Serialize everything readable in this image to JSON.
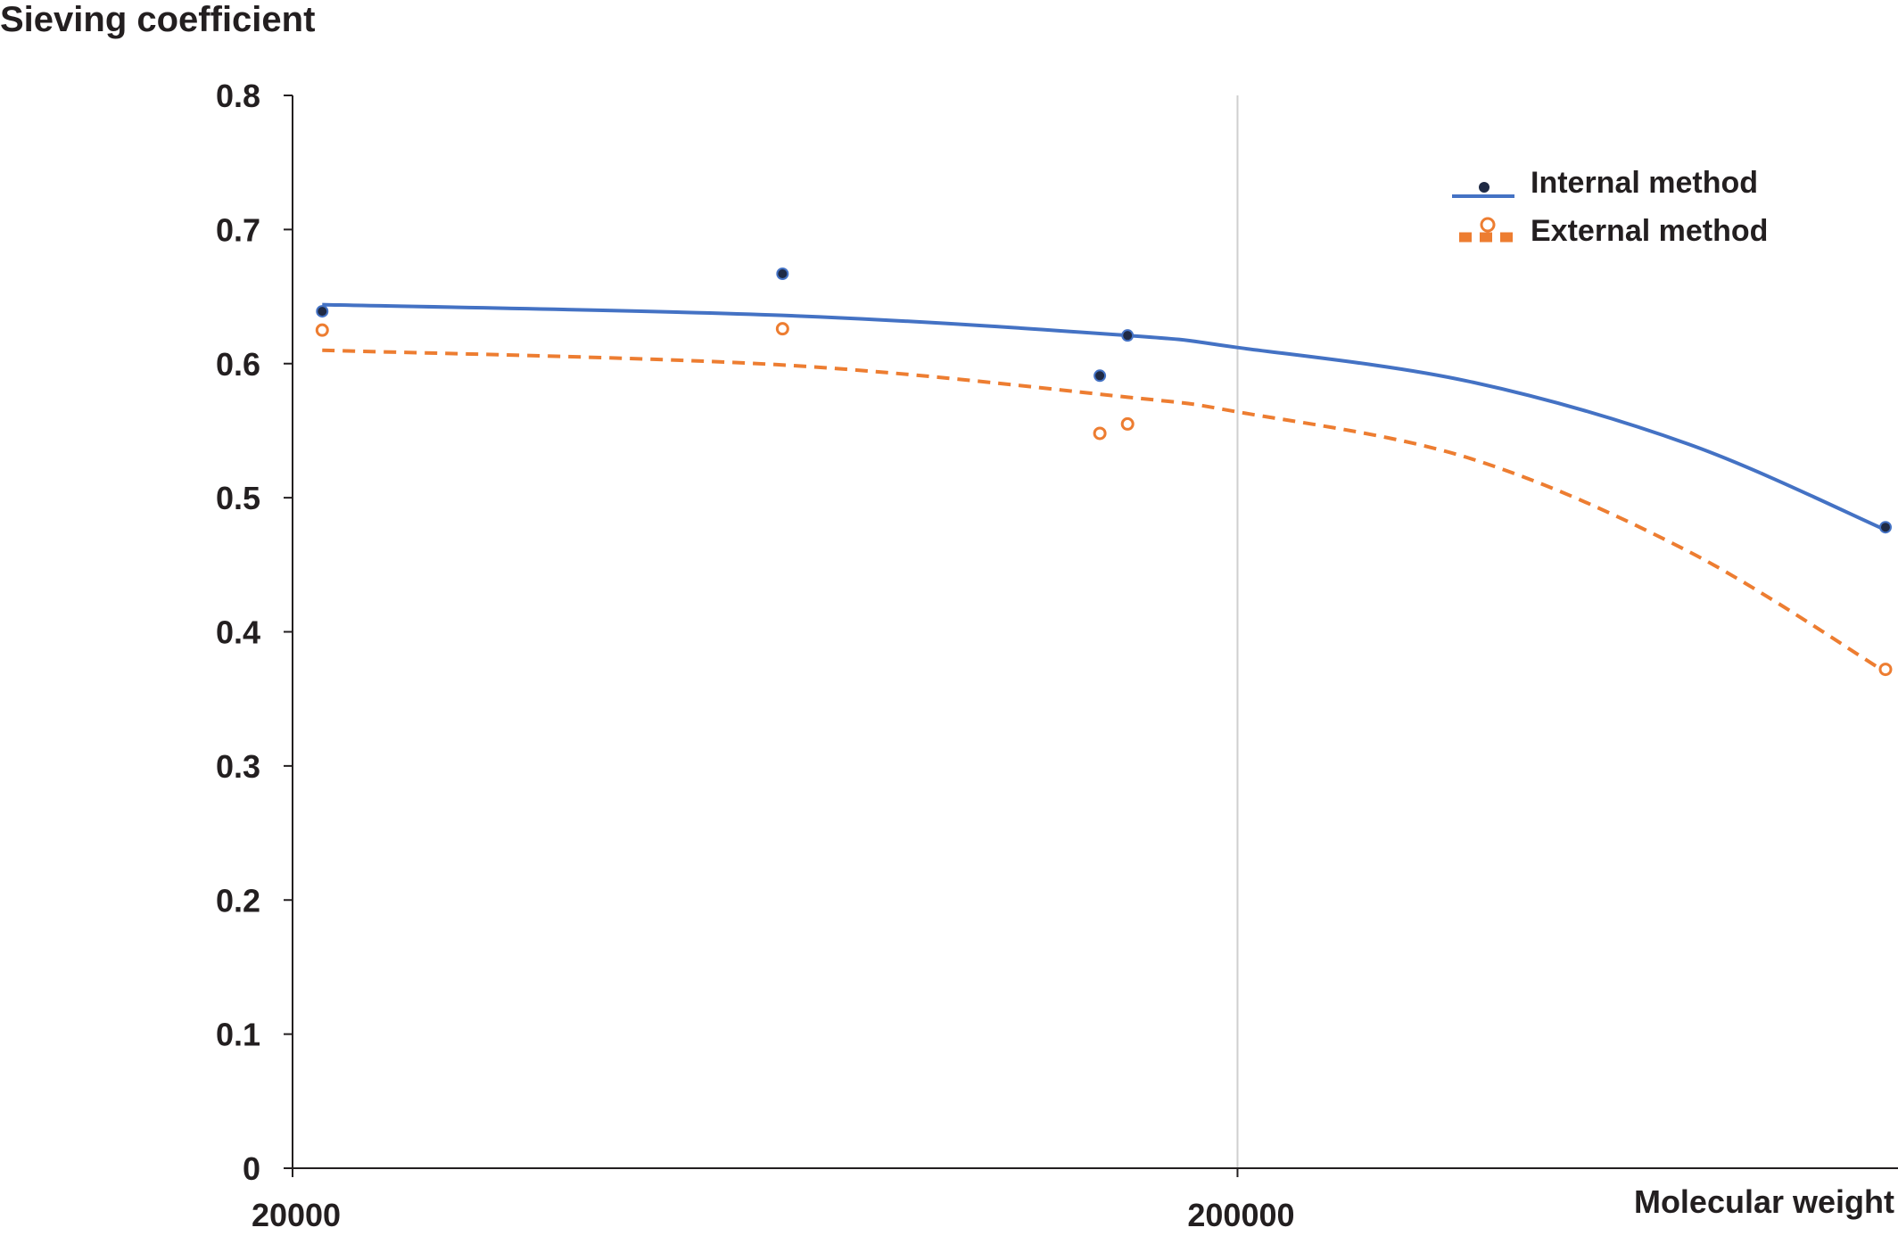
{
  "chart_data": {
    "type": "scatter",
    "ylabel": "Sieving coefficient",
    "xlabel": "Molecular weight",
    "x_scale": "log",
    "xlim": [
      20000,
      1000000
    ],
    "ylim": [
      0,
      0.8
    ],
    "x_ticks": [
      20000,
      200000
    ],
    "x_tick_labels": [
      "20000",
      "200000"
    ],
    "y_ticks": [
      0,
      0.1,
      0.2,
      0.3,
      0.4,
      0.5,
      0.6,
      0.7,
      0.8
    ],
    "y_tick_labels": [
      "0",
      "0.1",
      "0.2",
      "0.3",
      "0.4",
      "0.5",
      "0.6",
      "0.7",
      "0.8"
    ],
    "grid": "vertical line at 200000",
    "legend_position": "top-right",
    "series": [
      {
        "name": "Internal method",
        "color": "#4472c4",
        "marker_color": "#1f2a44",
        "marker": "filled-circle",
        "line_style": "solid",
        "points": [
          {
            "x": 21500,
            "y": 0.639
          },
          {
            "x": 66000,
            "y": 0.667
          },
          {
            "x": 143000,
            "y": 0.591
          },
          {
            "x": 153000,
            "y": 0.621
          },
          {
            "x": 970000,
            "y": 0.478
          }
        ],
        "trend": [
          {
            "x": 21500,
            "y": 0.644
          },
          {
            "x": 66000,
            "y": 0.636
          },
          {
            "x": 153000,
            "y": 0.621
          },
          {
            "x": 200000,
            "y": 0.612
          },
          {
            "x": 350000,
            "y": 0.587
          },
          {
            "x": 600000,
            "y": 0.54
          },
          {
            "x": 970000,
            "y": 0.476
          }
        ]
      },
      {
        "name": "External method",
        "color": "#ed7d31",
        "marker": "open-circle",
        "line_style": "dashed",
        "points": [
          {
            "x": 21500,
            "y": 0.625
          },
          {
            "x": 66000,
            "y": 0.626
          },
          {
            "x": 143000,
            "y": 0.548
          },
          {
            "x": 153000,
            "y": 0.555
          },
          {
            "x": 970000,
            "y": 0.372
          }
        ],
        "trend": [
          {
            "x": 21500,
            "y": 0.61
          },
          {
            "x": 66000,
            "y": 0.599
          },
          {
            "x": 153000,
            "y": 0.575
          },
          {
            "x": 200000,
            "y": 0.564
          },
          {
            "x": 350000,
            "y": 0.53
          },
          {
            "x": 600000,
            "y": 0.46
          },
          {
            "x": 970000,
            "y": 0.37
          }
        ]
      }
    ]
  }
}
